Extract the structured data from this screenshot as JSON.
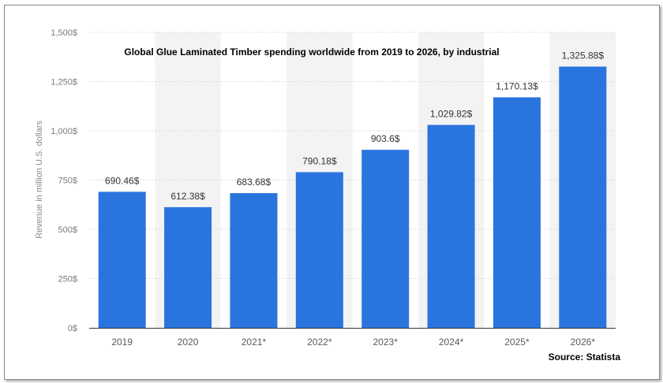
{
  "chart_data": {
    "type": "bar",
    "title": "Global Glue Laminated Timber spending worldwide from 2019 to 2026, by industrial",
    "ylabel": "Revenue in million U.S. dollars",
    "xlabel": "",
    "source": "Source: Statista",
    "categories": [
      "2019",
      "2020",
      "2021*",
      "2022*",
      "2023*",
      "2024*",
      "2025*",
      "2026*"
    ],
    "values": [
      690.46,
      612.38,
      683.68,
      790.18,
      903.6,
      1029.82,
      1170.13,
      1325.88
    ],
    "value_labels": [
      "690.46$",
      "612.38$",
      "683.68$",
      "790.18$",
      "903.6$",
      "1,029.82$",
      "1,170.13$",
      "1,325.88$"
    ],
    "ylim": [
      0,
      1500
    ],
    "yticks": [
      0,
      250,
      500,
      750,
      1000,
      1250,
      1500
    ],
    "ytick_labels": [
      "0$",
      "250$",
      "500$",
      "750$",
      "1,000$",
      "1,250$",
      "1,500$"
    ],
    "grid": true,
    "bar_color": "#2a74de",
    "band_color": "#f3f3f3"
  }
}
